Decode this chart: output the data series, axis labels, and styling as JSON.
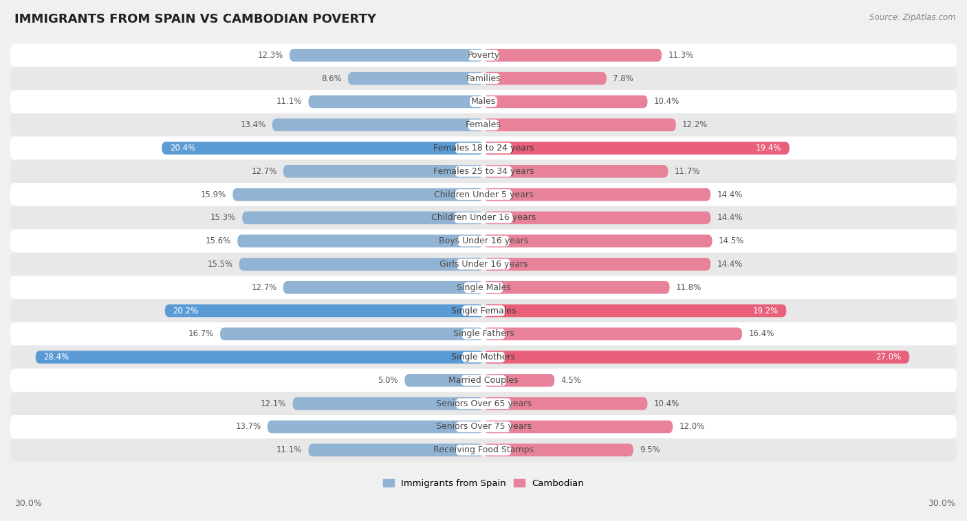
{
  "title": "IMMIGRANTS FROM SPAIN VS CAMBODIAN POVERTY",
  "source": "Source: ZipAtlas.com",
  "categories": [
    "Poverty",
    "Families",
    "Males",
    "Females",
    "Females 18 to 24 years",
    "Females 25 to 34 years",
    "Children Under 5 years",
    "Children Under 16 years",
    "Boys Under 16 years",
    "Girls Under 16 years",
    "Single Males",
    "Single Females",
    "Single Fathers",
    "Single Mothers",
    "Married Couples",
    "Seniors Over 65 years",
    "Seniors Over 75 years",
    "Receiving Food Stamps"
  ],
  "spain_values": [
    12.3,
    8.6,
    11.1,
    13.4,
    20.4,
    12.7,
    15.9,
    15.3,
    15.6,
    15.5,
    12.7,
    20.2,
    16.7,
    28.4,
    5.0,
    12.1,
    13.7,
    11.1
  ],
  "cambodian_values": [
    11.3,
    7.8,
    10.4,
    12.2,
    19.4,
    11.7,
    14.4,
    14.4,
    14.5,
    14.4,
    11.8,
    19.2,
    16.4,
    27.0,
    4.5,
    10.4,
    12.0,
    9.5
  ],
  "spain_color": "#92b4d4",
  "cambodian_color": "#e8829a",
  "spain_highlight_color": "#5b9bd5",
  "cambodian_highlight_color": "#e8607a",
  "highlight_rows": [
    4,
    11,
    13
  ],
  "xlim": 30.0,
  "background_color": "#f0f0f0",
  "row_bg_even": "#ffffff",
  "row_bg_odd": "#e8e8e8",
  "legend_spain": "Immigrants from Spain",
  "legend_cambodian": "Cambodian",
  "title_fontsize": 13,
  "label_fontsize": 9,
  "value_fontsize": 8.5,
  "axis_fontsize": 9
}
